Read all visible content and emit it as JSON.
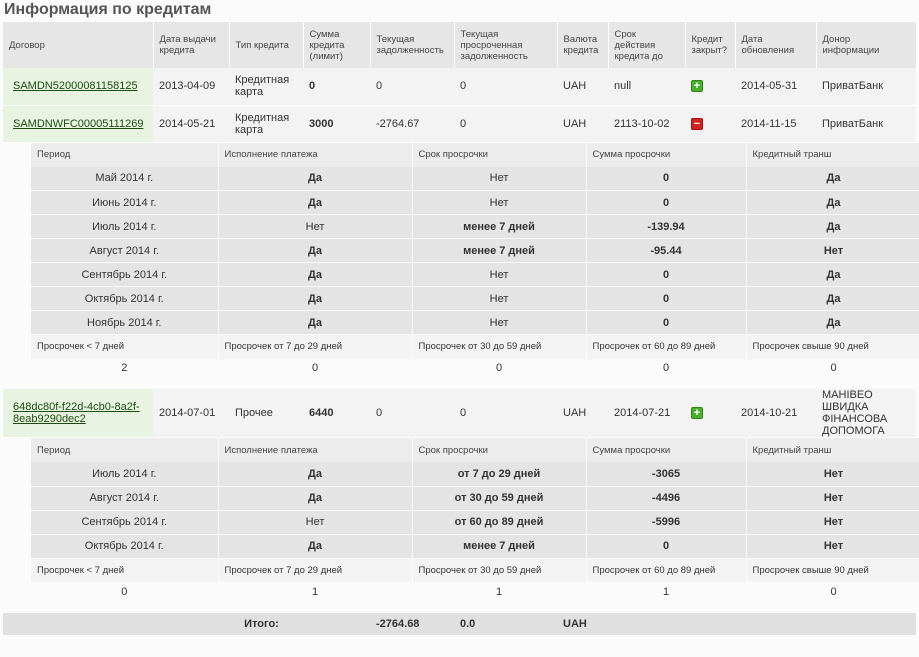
{
  "page": {
    "title": "Информация по кредитам"
  },
  "columns": [
    "Договор",
    "Дата выдачи кредита",
    "Тип кредита",
    "Сумма кредита (лимит)",
    "Текущая задолженность",
    "Текущая просроченная задолженность",
    "Валюта кредита",
    "Срок действия кредита до",
    "Кредит закрыт?",
    "Дата обновления",
    "Донор информации"
  ],
  "detail_columns": [
    "Период",
    "Исполнение платежа",
    "Срок просрочки",
    "Сумма просрочки",
    "Кредитный транш"
  ],
  "summary_columns": [
    "Просрочек < 7 дней",
    "Просрочек от 7 до 29 дней",
    "Просрочек от 30 до 59 дней",
    "Просрочек от 60 до 89 дней",
    "Просрочек свыше 90 дней"
  ],
  "loans": [
    {
      "contract": "SAMDN52000081158125",
      "issue_date": "2013-04-09",
      "type": "Кредитная карта",
      "amount": "0",
      "debt": "0",
      "overdue_debt": "0",
      "currency": "UAH",
      "valid_until": "null",
      "closed_icon": "plus-icon",
      "updated": "2014-05-31",
      "donor": "ПриватБанк"
    },
    {
      "contract": "SAMDNWFC00005111269",
      "issue_date": "2014-05-21",
      "type": "Кредитная карта",
      "amount": "3000",
      "debt": "-2764.67",
      "overdue_debt": "0",
      "currency": "UAH",
      "valid_until": "2113-10-02",
      "closed_icon": "minus-icon",
      "updated": "2014-11-15",
      "donor": "ПриватБанк",
      "details": [
        {
          "period": "Май 2014 г.",
          "payment": "Да",
          "overdue_term": "Нет",
          "overdue_sum": "0",
          "tranche": "Да"
        },
        {
          "period": "Июнь 2014 г.",
          "payment": "Да",
          "overdue_term": "Нет",
          "overdue_sum": "0",
          "tranche": "Да"
        },
        {
          "period": "Июль 2014 г.",
          "payment": "Нет",
          "overdue_term": "менее 7 дней",
          "overdue_sum": "-139.94",
          "tranche": "Да"
        },
        {
          "period": "Август 2014 г.",
          "payment": "Да",
          "overdue_term": "менее 7 дней",
          "overdue_sum": "-95.44",
          "tranche": "Нет"
        },
        {
          "period": "Сентябрь 2014 г.",
          "payment": "Да",
          "overdue_term": "Нет",
          "overdue_sum": "0",
          "tranche": "Да"
        },
        {
          "period": "Октябрь 2014 г.",
          "payment": "Да",
          "overdue_term": "Нет",
          "overdue_sum": "0",
          "tranche": "Да"
        },
        {
          "period": "Ноябрь 2014 г.",
          "payment": "Да",
          "overdue_term": "Нет",
          "overdue_sum": "0",
          "tranche": "Да"
        }
      ],
      "summary": [
        "2",
        "0",
        "0",
        "0",
        "0"
      ]
    },
    {
      "contract": "648dc80f-f22d-4cb0-8a2f-8eab9290dec2",
      "issue_date": "2014-07-01",
      "type": "Прочее",
      "amount": "6440",
      "debt": "0",
      "overdue_debt": "0",
      "currency": "UAH",
      "valid_until": "2014-07-21",
      "closed_icon": "plus-icon",
      "updated": "2014-10-21",
      "donor": "МАНІВЕО ШВИДКА ФІНАНСОВА ДОПОМОГА",
      "details": [
        {
          "period": "Июль 2014 г.",
          "payment": "Да",
          "overdue_term": "от 7 до 29 дней",
          "overdue_sum": "-3065",
          "tranche": "Нет"
        },
        {
          "period": "Август 2014 г.",
          "payment": "Да",
          "overdue_term": "от 30 до 59 дней",
          "overdue_sum": "-4496",
          "tranche": "Нет"
        },
        {
          "period": "Сентябрь 2014 г.",
          "payment": "Нет",
          "overdue_term": "от 60 до 89 дней",
          "overdue_sum": "-5996",
          "tranche": "Нет"
        },
        {
          "period": "Октябрь 2014 г.",
          "payment": "Да",
          "overdue_term": "менее 7 дней",
          "overdue_sum": "0",
          "tranche": "Нет"
        }
      ],
      "summary": [
        "0",
        "1",
        "1",
        "1",
        "0"
      ]
    }
  ],
  "totals": {
    "label": "Итого:",
    "debt": "-2764.68",
    "overdue": "0.0",
    "currency": "UAH"
  },
  "colors": {
    "yes": "#3a9a1e",
    "no": "#333333",
    "overdue_short": "#f5a623",
    "overdue_long": "#d64218",
    "negative_sum": "#c8141a",
    "amount": "#5ca42a"
  }
}
